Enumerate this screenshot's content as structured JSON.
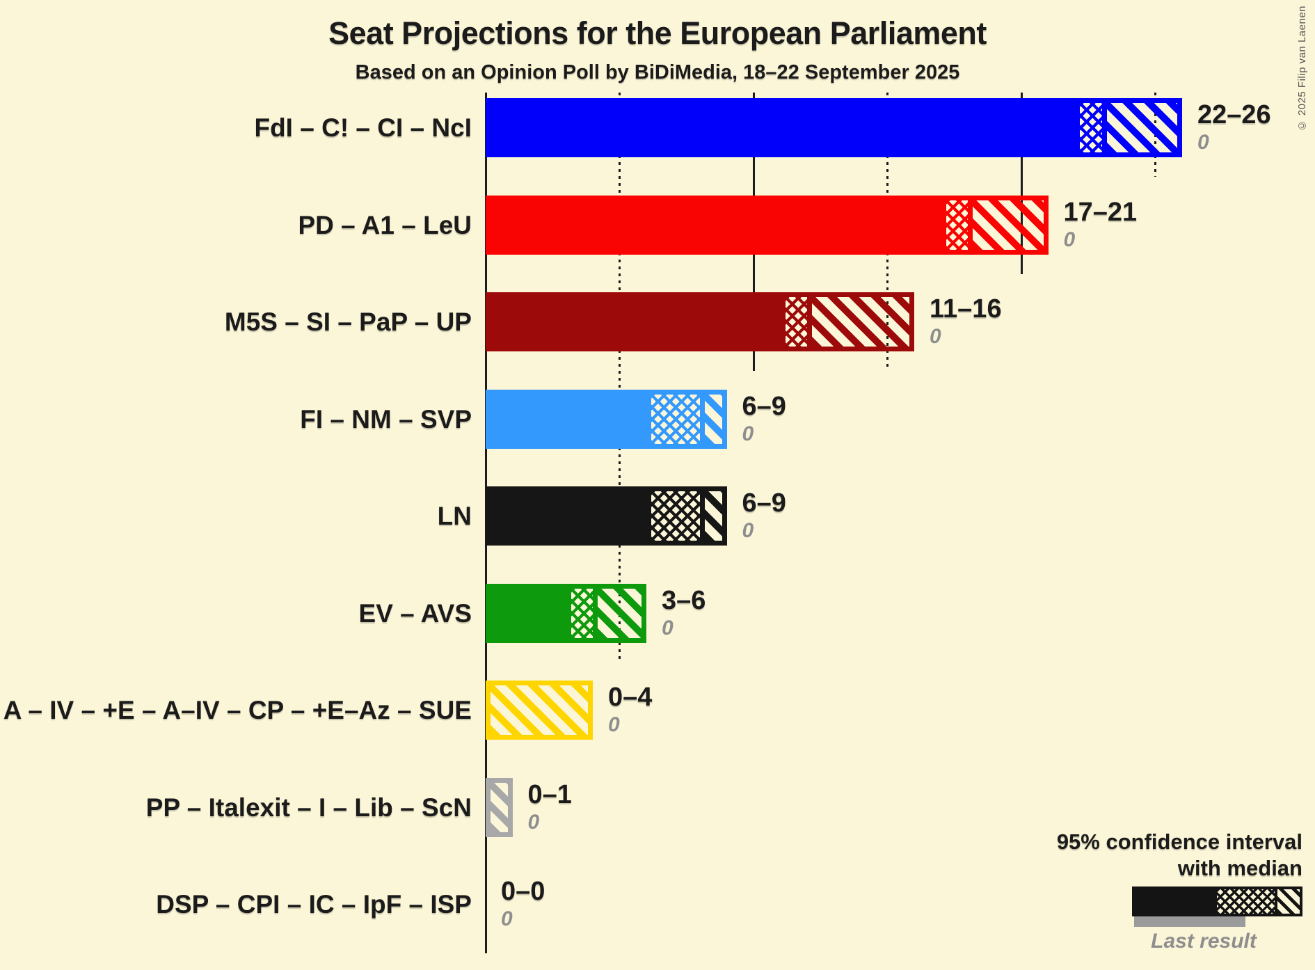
{
  "copyright": "© 2025 Filip van Laenen",
  "chart_data": {
    "type": "bar",
    "orientation": "horizontal",
    "title": "Seat Projections for the European Parliament",
    "subtitle": "Based on an Opinion Poll by BiDiMedia, 18–22 September 2025",
    "unit": "seats",
    "background_color": "#fcf6d8",
    "text_color": "#1b1b1b",
    "muted_color": "#8e8e8e",
    "grid_color": "#1c1c1c",
    "axis": {
      "min": 0,
      "max": 26,
      "gridline_interval": 5
    },
    "gridlines": [
      {
        "value": 0,
        "style": "solid"
      },
      {
        "value": 5,
        "style": "dotted"
      },
      {
        "value": 10,
        "style": "solid"
      },
      {
        "value": 15,
        "style": "dotted"
      },
      {
        "value": 20,
        "style": "solid"
      },
      {
        "value": 25,
        "style": "dotted"
      }
    ],
    "bars": [
      {
        "label": "FdI – C! – CI – NcI",
        "color": "#0000fb",
        "ci_low": 22,
        "median": 23,
        "ci_high": 26,
        "range_label": "22–26",
        "last_result": 0,
        "last_result_label": "0"
      },
      {
        "label": "PD – A1 – LeU",
        "color": "#fa0303",
        "ci_low": 17,
        "median": 18,
        "ci_high": 21,
        "range_label": "17–21",
        "last_result": 0,
        "last_result_label": "0"
      },
      {
        "label": "M5S – SI – PaP – UP",
        "color": "#9c0a0a",
        "ci_low": 11,
        "median": 12,
        "ci_high": 16,
        "range_label": "11–16",
        "last_result": 0,
        "last_result_label": "0"
      },
      {
        "label": "FI – NM – SVP",
        "color": "#3499fc",
        "ci_low": 6,
        "median": 8,
        "ci_high": 9,
        "range_label": "6–9",
        "last_result": 0,
        "last_result_label": "0"
      },
      {
        "label": "LN",
        "color": "#161616",
        "ci_low": 6,
        "median": 8,
        "ci_high": 9,
        "range_label": "6–9",
        "last_result": 0,
        "last_result_label": "0"
      },
      {
        "label": "EV – AVS",
        "color": "#0d9a0d",
        "ci_low": 3,
        "median": 4,
        "ci_high": 6,
        "range_label": "3–6",
        "last_result": 0,
        "last_result_label": "0"
      },
      {
        "label": "A – IV – +E – A–IV – CP – +E–Az – SUE",
        "color": "#ffd500",
        "ci_low": 0,
        "median": 0,
        "ci_high": 4,
        "range_label": "0–4",
        "last_result": 0,
        "last_result_label": "0"
      },
      {
        "label": "PP – Italexit – I – Lib – ScN",
        "color": "#a8a8a8",
        "ci_low": 0,
        "median": 0,
        "ci_high": 1,
        "range_label": "0–1",
        "last_result": 0,
        "last_result_label": "0"
      },
      {
        "label": "DSP – CPI – IC – IpF – ISP",
        "color": "#a8a8a8",
        "ci_low": 0,
        "median": 0,
        "ci_high": 0,
        "range_label": "0–0",
        "last_result": 0,
        "last_result_label": "0"
      }
    ],
    "legend": {
      "line1": "95% confidence interval",
      "line2": "with median",
      "last_result": "Last result"
    }
  }
}
